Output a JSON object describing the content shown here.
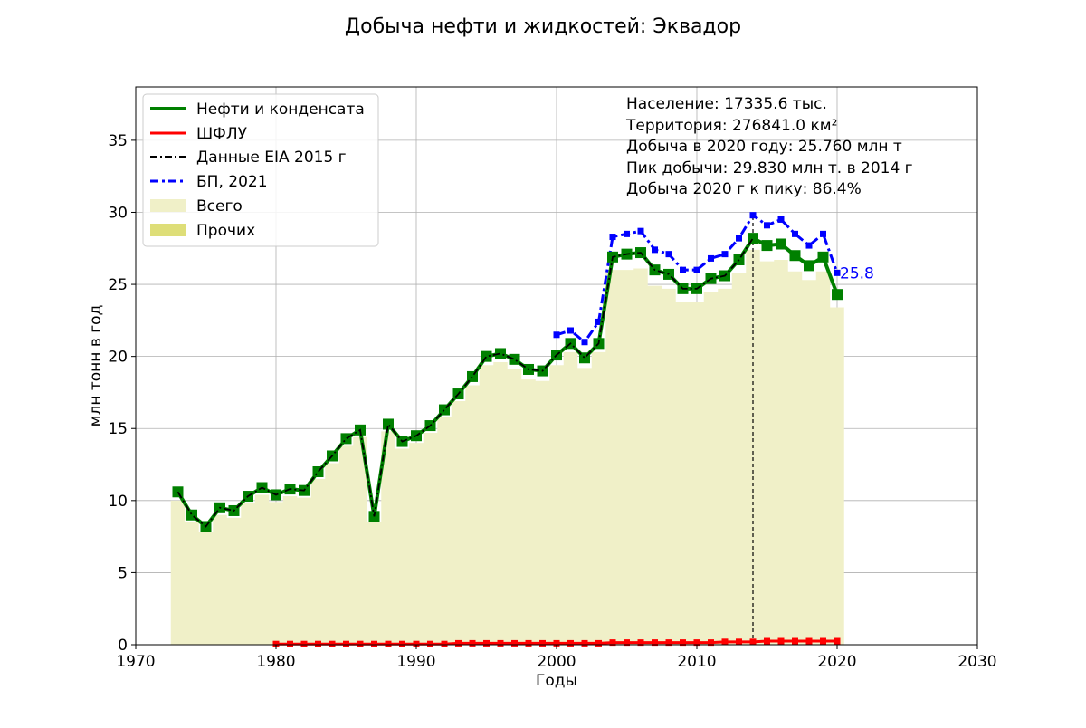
{
  "chart_data": {
    "type": "line",
    "title": "Добыча нефти и жидкостей: Эквадор",
    "xlabel": "Годы",
    "ylabel": "млн тонн в год",
    "xlim": [
      1970,
      2030
    ],
    "ylim": [
      0,
      38.7
    ],
    "x_ticks": [
      1970,
      1980,
      1990,
      2000,
      2010,
      2020,
      2030
    ],
    "y_ticks": [
      0,
      5,
      10,
      15,
      20,
      25,
      30,
      35
    ],
    "grid": true,
    "legend_position": "top-left",
    "legend": [
      "Нефти и конденсата",
      "ШФЛУ",
      "Данные EIA 2015 г",
      "БП, 2021",
      "Всего",
      "Прочих"
    ],
    "info_lines": [
      "Население: 17335.6 тыс.",
      "Территория: 276841.0 км²",
      "Добыча в 2020 году: 25.760 млн т",
      "Пик добычи: 29.830 млн т. в 2014 г",
      "Добыча 2020 г к пику: 86.4%"
    ],
    "peak_year": 2014,
    "end_label": "25.8",
    "colors": {
      "oil": "#008000",
      "ngl": "#ff0000",
      "eia": "#000000",
      "bp": "#0000ff",
      "total_fill": "#f0f0c8",
      "other_fill": "#dede78"
    },
    "series": [
      {
        "name": "Нефти и конденсата",
        "x": [
          1973,
          1974,
          1975,
          1976,
          1977,
          1978,
          1979,
          1980,
          1981,
          1982,
          1983,
          1984,
          1985,
          1986,
          1987,
          1988,
          1989,
          1990,
          1991,
          1992,
          1993,
          1994,
          1995,
          1996,
          1997,
          1998,
          1999,
          2000,
          2001,
          2002,
          2003,
          2004,
          2005,
          2006,
          2007,
          2008,
          2009,
          2010,
          2011,
          2012,
          2013,
          2014,
          2015,
          2016,
          2017,
          2018,
          2019,
          2020
        ],
        "values": [
          10.6,
          9.0,
          8.2,
          9.5,
          9.3,
          10.3,
          10.9,
          10.4,
          10.8,
          10.7,
          12.0,
          13.1,
          14.3,
          14.9,
          8.9,
          15.3,
          14.1,
          14.5,
          15.2,
          16.3,
          17.4,
          18.6,
          20.0,
          20.2,
          19.8,
          19.1,
          19.0,
          20.1,
          20.9,
          19.9,
          20.9,
          26.9,
          27.1,
          27.2,
          26.0,
          25.7,
          24.7,
          24.7,
          25.4,
          25.6,
          26.7,
          28.2,
          27.7,
          27.8,
          27.0,
          26.3,
          26.9,
          24.3
        ]
      },
      {
        "name": "ШФЛУ",
        "x": [
          1980,
          1981,
          1982,
          1983,
          1984,
          1985,
          1986,
          1987,
          1988,
          1989,
          1990,
          1991,
          1992,
          1993,
          1994,
          1995,
          1996,
          1997,
          1998,
          1999,
          2000,
          2001,
          2002,
          2003,
          2004,
          2005,
          2006,
          2007,
          2008,
          2009,
          2010,
          2011,
          2012,
          2013,
          2014,
          2015,
          2016,
          2017,
          2018,
          2019,
          2020
        ],
        "values": [
          0.05,
          0.05,
          0.05,
          0.05,
          0.05,
          0.05,
          0.05,
          0.05,
          0.05,
          0.05,
          0.05,
          0.05,
          0.05,
          0.1,
          0.1,
          0.1,
          0.1,
          0.1,
          0.1,
          0.1,
          0.1,
          0.1,
          0.1,
          0.1,
          0.15,
          0.15,
          0.15,
          0.15,
          0.15,
          0.15,
          0.15,
          0.15,
          0.2,
          0.2,
          0.2,
          0.25,
          0.25,
          0.25,
          0.25,
          0.25,
          0.25
        ]
      },
      {
        "name": "Данные EIA 2015 г",
        "x": [
          1973,
          1974,
          1975,
          1976,
          1977,
          1978,
          1979,
          1980,
          1981,
          1982,
          1983,
          1984,
          1985,
          1986,
          1987,
          1988,
          1989,
          1990,
          1991,
          1992,
          1993,
          1994,
          1995,
          1996,
          1997,
          1998,
          1999,
          2000,
          2001,
          2002,
          2003,
          2004,
          2005,
          2006,
          2007,
          2008,
          2009,
          2010,
          2011,
          2012,
          2013,
          2014
        ],
        "values": [
          10.6,
          9.0,
          8.2,
          9.5,
          9.3,
          10.3,
          10.9,
          10.4,
          10.8,
          10.7,
          12.0,
          13.1,
          14.3,
          14.9,
          8.9,
          15.3,
          14.1,
          14.5,
          15.2,
          16.3,
          17.4,
          18.6,
          20.0,
          20.2,
          19.8,
          19.1,
          19.0,
          20.1,
          20.9,
          19.9,
          20.9,
          26.9,
          27.1,
          27.2,
          26.0,
          25.7,
          24.7,
          24.7,
          25.4,
          25.6,
          26.7,
          28.2
        ]
      },
      {
        "name": "БП, 2021",
        "x": [
          2000,
          2001,
          2002,
          2003,
          2004,
          2005,
          2006,
          2007,
          2008,
          2009,
          2010,
          2011,
          2012,
          2013,
          2014,
          2015,
          2016,
          2017,
          2018,
          2019,
          2020
        ],
        "values": [
          21.5,
          21.8,
          21.0,
          22.4,
          28.3,
          28.5,
          28.7,
          27.4,
          27.1,
          26.0,
          26.0,
          26.8,
          27.1,
          28.2,
          29.8,
          29.1,
          29.5,
          28.5,
          27.7,
          28.5,
          25.8
        ]
      },
      {
        "name": "Всего",
        "x": [
          1973,
          1974,
          1975,
          1976,
          1977,
          1978,
          1979,
          1980,
          1981,
          1982,
          1983,
          1984,
          1985,
          1986,
          1987,
          1988,
          1989,
          1990,
          1991,
          1992,
          1993,
          1994,
          1995,
          1996,
          1997,
          1998,
          1999,
          2000,
          2001,
          2002,
          2003,
          2004,
          2005,
          2006,
          2007,
          2008,
          2009,
          2010,
          2011,
          2012,
          2013,
          2014,
          2015,
          2016,
          2017,
          2018,
          2019,
          2020
        ],
        "values": [
          10.0,
          8.5,
          7.8,
          9.0,
          8.8,
          9.8,
          10.4,
          9.9,
          10.3,
          10.2,
          11.5,
          12.6,
          13.8,
          14.4,
          8.5,
          14.8,
          13.6,
          14.0,
          14.7,
          15.8,
          16.9,
          18.0,
          19.4,
          19.6,
          19.1,
          18.4,
          18.3,
          19.4,
          20.3,
          19.2,
          20.3,
          26.0,
          26.0,
          26.1,
          24.9,
          24.7,
          23.8,
          23.8,
          24.5,
          24.7,
          25.8,
          27.4,
          26.6,
          26.7,
          25.9,
          25.3,
          25.9,
          23.4
        ]
      },
      {
        "name": "Прочих",
        "x": [
          1973,
          2020
        ],
        "values": [
          0,
          0
        ]
      }
    ]
  }
}
